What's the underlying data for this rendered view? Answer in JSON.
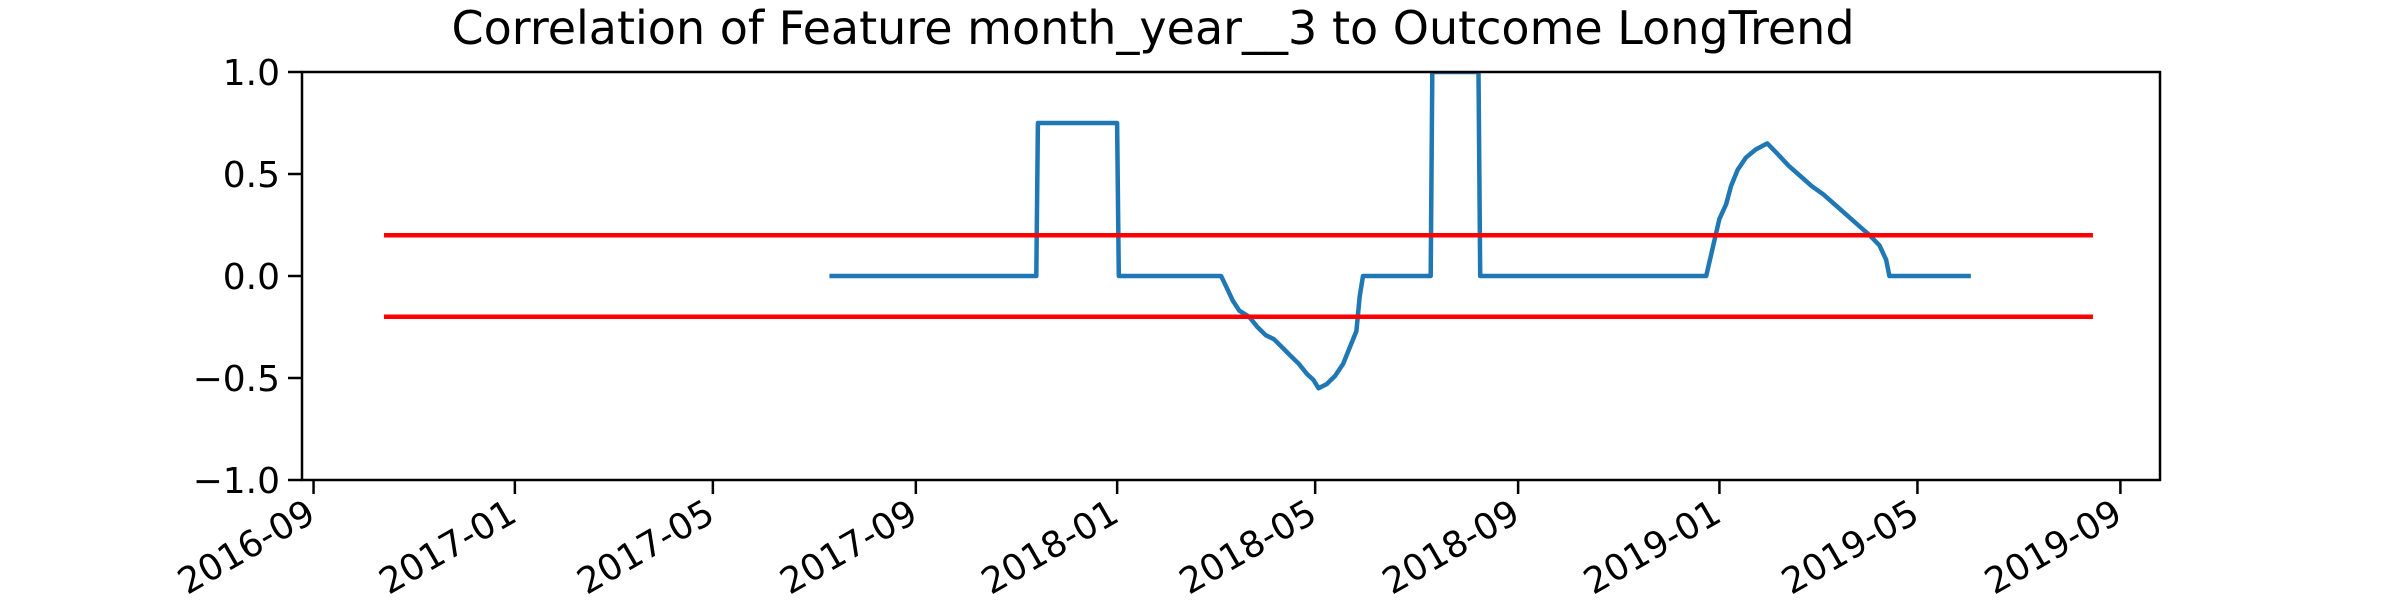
{
  "chart_data": {
    "type": "line",
    "title": "Correlation of Feature month_year__3 to Outcome LongTrend",
    "xlabel": "",
    "ylabel": "",
    "x_axis_type": "date",
    "xlim": [
      "2016-08-25",
      "2019-09-25"
    ],
    "ylim": [
      -1.0,
      1.0
    ],
    "x_ticks": [
      "2016-09-01",
      "2017-01-01",
      "2017-05-01",
      "2017-09-01",
      "2018-01-01",
      "2018-05-01",
      "2018-09-01",
      "2019-01-01",
      "2019-05-01",
      "2019-09-01"
    ],
    "x_tick_labels": [
      "2016-09",
      "2017-01",
      "2017-05",
      "2017-09",
      "2018-01",
      "2018-05",
      "2018-09",
      "2019-01",
      "2019-05",
      "2019-09"
    ],
    "y_ticks": [
      -1.0,
      -0.5,
      0.0,
      0.5,
      1.0
    ],
    "y_tick_labels": [
      "−1.0",
      "−0.5",
      "0.0",
      "0.5",
      "1.0"
    ],
    "grid": false,
    "series": [
      {
        "color": "#1f77b4",
        "points": [
          [
            "2017-07-12",
            0.0
          ],
          [
            "2017-11-13",
            0.0
          ],
          [
            "2017-11-14",
            0.75
          ],
          [
            "2017-12-15",
            0.75
          ],
          [
            "2018-01-01",
            0.75
          ],
          [
            "2018-01-02",
            0.0
          ],
          [
            "2018-02-19",
            0.0
          ],
          [
            "2018-03-05",
            0.0
          ],
          [
            "2018-03-08",
            -0.05
          ],
          [
            "2018-03-12",
            -0.12
          ],
          [
            "2018-03-16",
            -0.17
          ],
          [
            "2018-03-22",
            -0.2
          ],
          [
            "2018-03-27",
            -0.25
          ],
          [
            "2018-04-01",
            -0.29
          ],
          [
            "2018-04-06",
            -0.31
          ],
          [
            "2018-04-11",
            -0.35
          ],
          [
            "2018-04-16",
            -0.39
          ],
          [
            "2018-04-21",
            -0.43
          ],
          [
            "2018-04-26",
            -0.48
          ],
          [
            "2018-04-30",
            -0.51
          ],
          [
            "2018-05-03",
            -0.55
          ],
          [
            "2018-05-08",
            -0.53
          ],
          [
            "2018-05-13",
            -0.49
          ],
          [
            "2018-05-18",
            -0.43
          ],
          [
            "2018-05-22",
            -0.35
          ],
          [
            "2018-05-26",
            -0.27
          ],
          [
            "2018-05-28",
            -0.1
          ],
          [
            "2018-05-30",
            0.0
          ],
          [
            "2018-07-10",
            0.0
          ],
          [
            "2018-07-11",
            1.0
          ],
          [
            "2018-08-08",
            1.0
          ],
          [
            "2018-08-09",
            0.0
          ],
          [
            "2018-12-24",
            0.0
          ],
          [
            "2019-01-01",
            0.28
          ],
          [
            "2019-01-05",
            0.35
          ],
          [
            "2019-01-08",
            0.44
          ],
          [
            "2019-01-12",
            0.52
          ],
          [
            "2019-01-17",
            0.58
          ],
          [
            "2019-01-23",
            0.62
          ],
          [
            "2019-01-30",
            0.65
          ],
          [
            "2019-02-05",
            0.6
          ],
          [
            "2019-02-12",
            0.54
          ],
          [
            "2019-02-19",
            0.49
          ],
          [
            "2019-02-26",
            0.44
          ],
          [
            "2019-03-05",
            0.4
          ],
          [
            "2019-03-12",
            0.35
          ],
          [
            "2019-03-19",
            0.3
          ],
          [
            "2019-03-26",
            0.25
          ],
          [
            "2019-04-02",
            0.2
          ],
          [
            "2019-04-08",
            0.15
          ],
          [
            "2019-04-12",
            0.08
          ],
          [
            "2019-04-14",
            0.0
          ],
          [
            "2019-06-01",
            0.0
          ]
        ]
      },
      {
        "color": "#ff0000",
        "points": [
          [
            "2016-10-15",
            0.2
          ],
          [
            "2019-08-14",
            0.2
          ]
        ]
      },
      {
        "color": "#ff0000",
        "points": [
          [
            "2016-10-15",
            -0.2
          ],
          [
            "2019-08-14",
            -0.2
          ]
        ]
      }
    ],
    "legend": "none"
  }
}
